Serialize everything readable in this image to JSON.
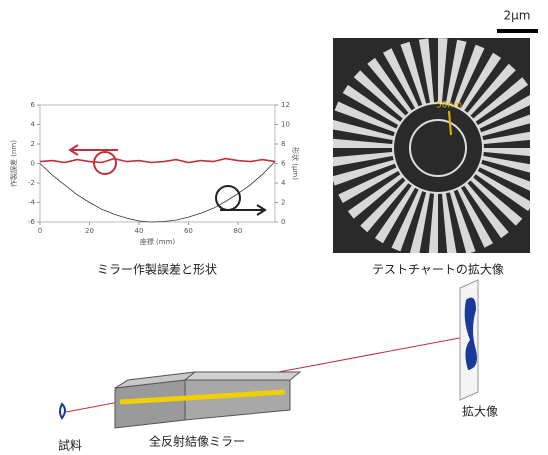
{
  "chart_data": {
    "type": "line",
    "x": [
      0,
      5,
      10,
      15,
      20,
      25,
      30,
      35,
      40,
      45,
      50,
      55,
      60,
      65,
      70,
      75,
      80,
      85,
      90,
      95
    ],
    "series": [
      {
        "name": "作製誤差",
        "color": "#c0303a",
        "values": [
          0.2,
          0.3,
          0.1,
          0.4,
          0.2,
          0.1,
          0.5,
          0.2,
          0.3,
          0.1,
          0.2,
          0.4,
          0.1,
          0.3,
          0.2,
          0.5,
          0.3,
          0.2,
          0.4,
          0.2
        ]
      },
      {
        "name": "形状",
        "color": "#333333",
        "axis": "y2",
        "values": [
          6,
          4.8,
          3.8,
          2.8,
          2,
          1.3,
          0.8,
          0.4,
          0.1,
          0,
          0.05,
          0.2,
          0.5,
          0.9,
          1.4,
          2.1,
          2.9,
          3.8,
          4.9,
          6.2
        ]
      }
    ],
    "xlim": [
      0,
      95
    ],
    "xticks": [
      0,
      20,
      40,
      60,
      80
    ],
    "ylim": [
      -6,
      6
    ],
    "yticks": [
      -6,
      -4,
      -2,
      0,
      2,
      4,
      6
    ],
    "y2lim": [
      0,
      12
    ],
    "y2ticks": [
      0,
      2,
      4,
      6,
      8,
      10,
      12
    ],
    "xlabel": "座標 (mm)",
    "ylabel": "作製誤差 (nm)",
    "y2label": "形状 (μm)"
  },
  "captions": {
    "chart": "ミラー作製誤差と形状",
    "image": "テストチャートの拡大像"
  },
  "image": {
    "scale_bar": "2μm",
    "marker": "50nm"
  },
  "diagram": {
    "sample": "試料",
    "mirror": "全反射結像ミラー",
    "image": "拡大像"
  }
}
